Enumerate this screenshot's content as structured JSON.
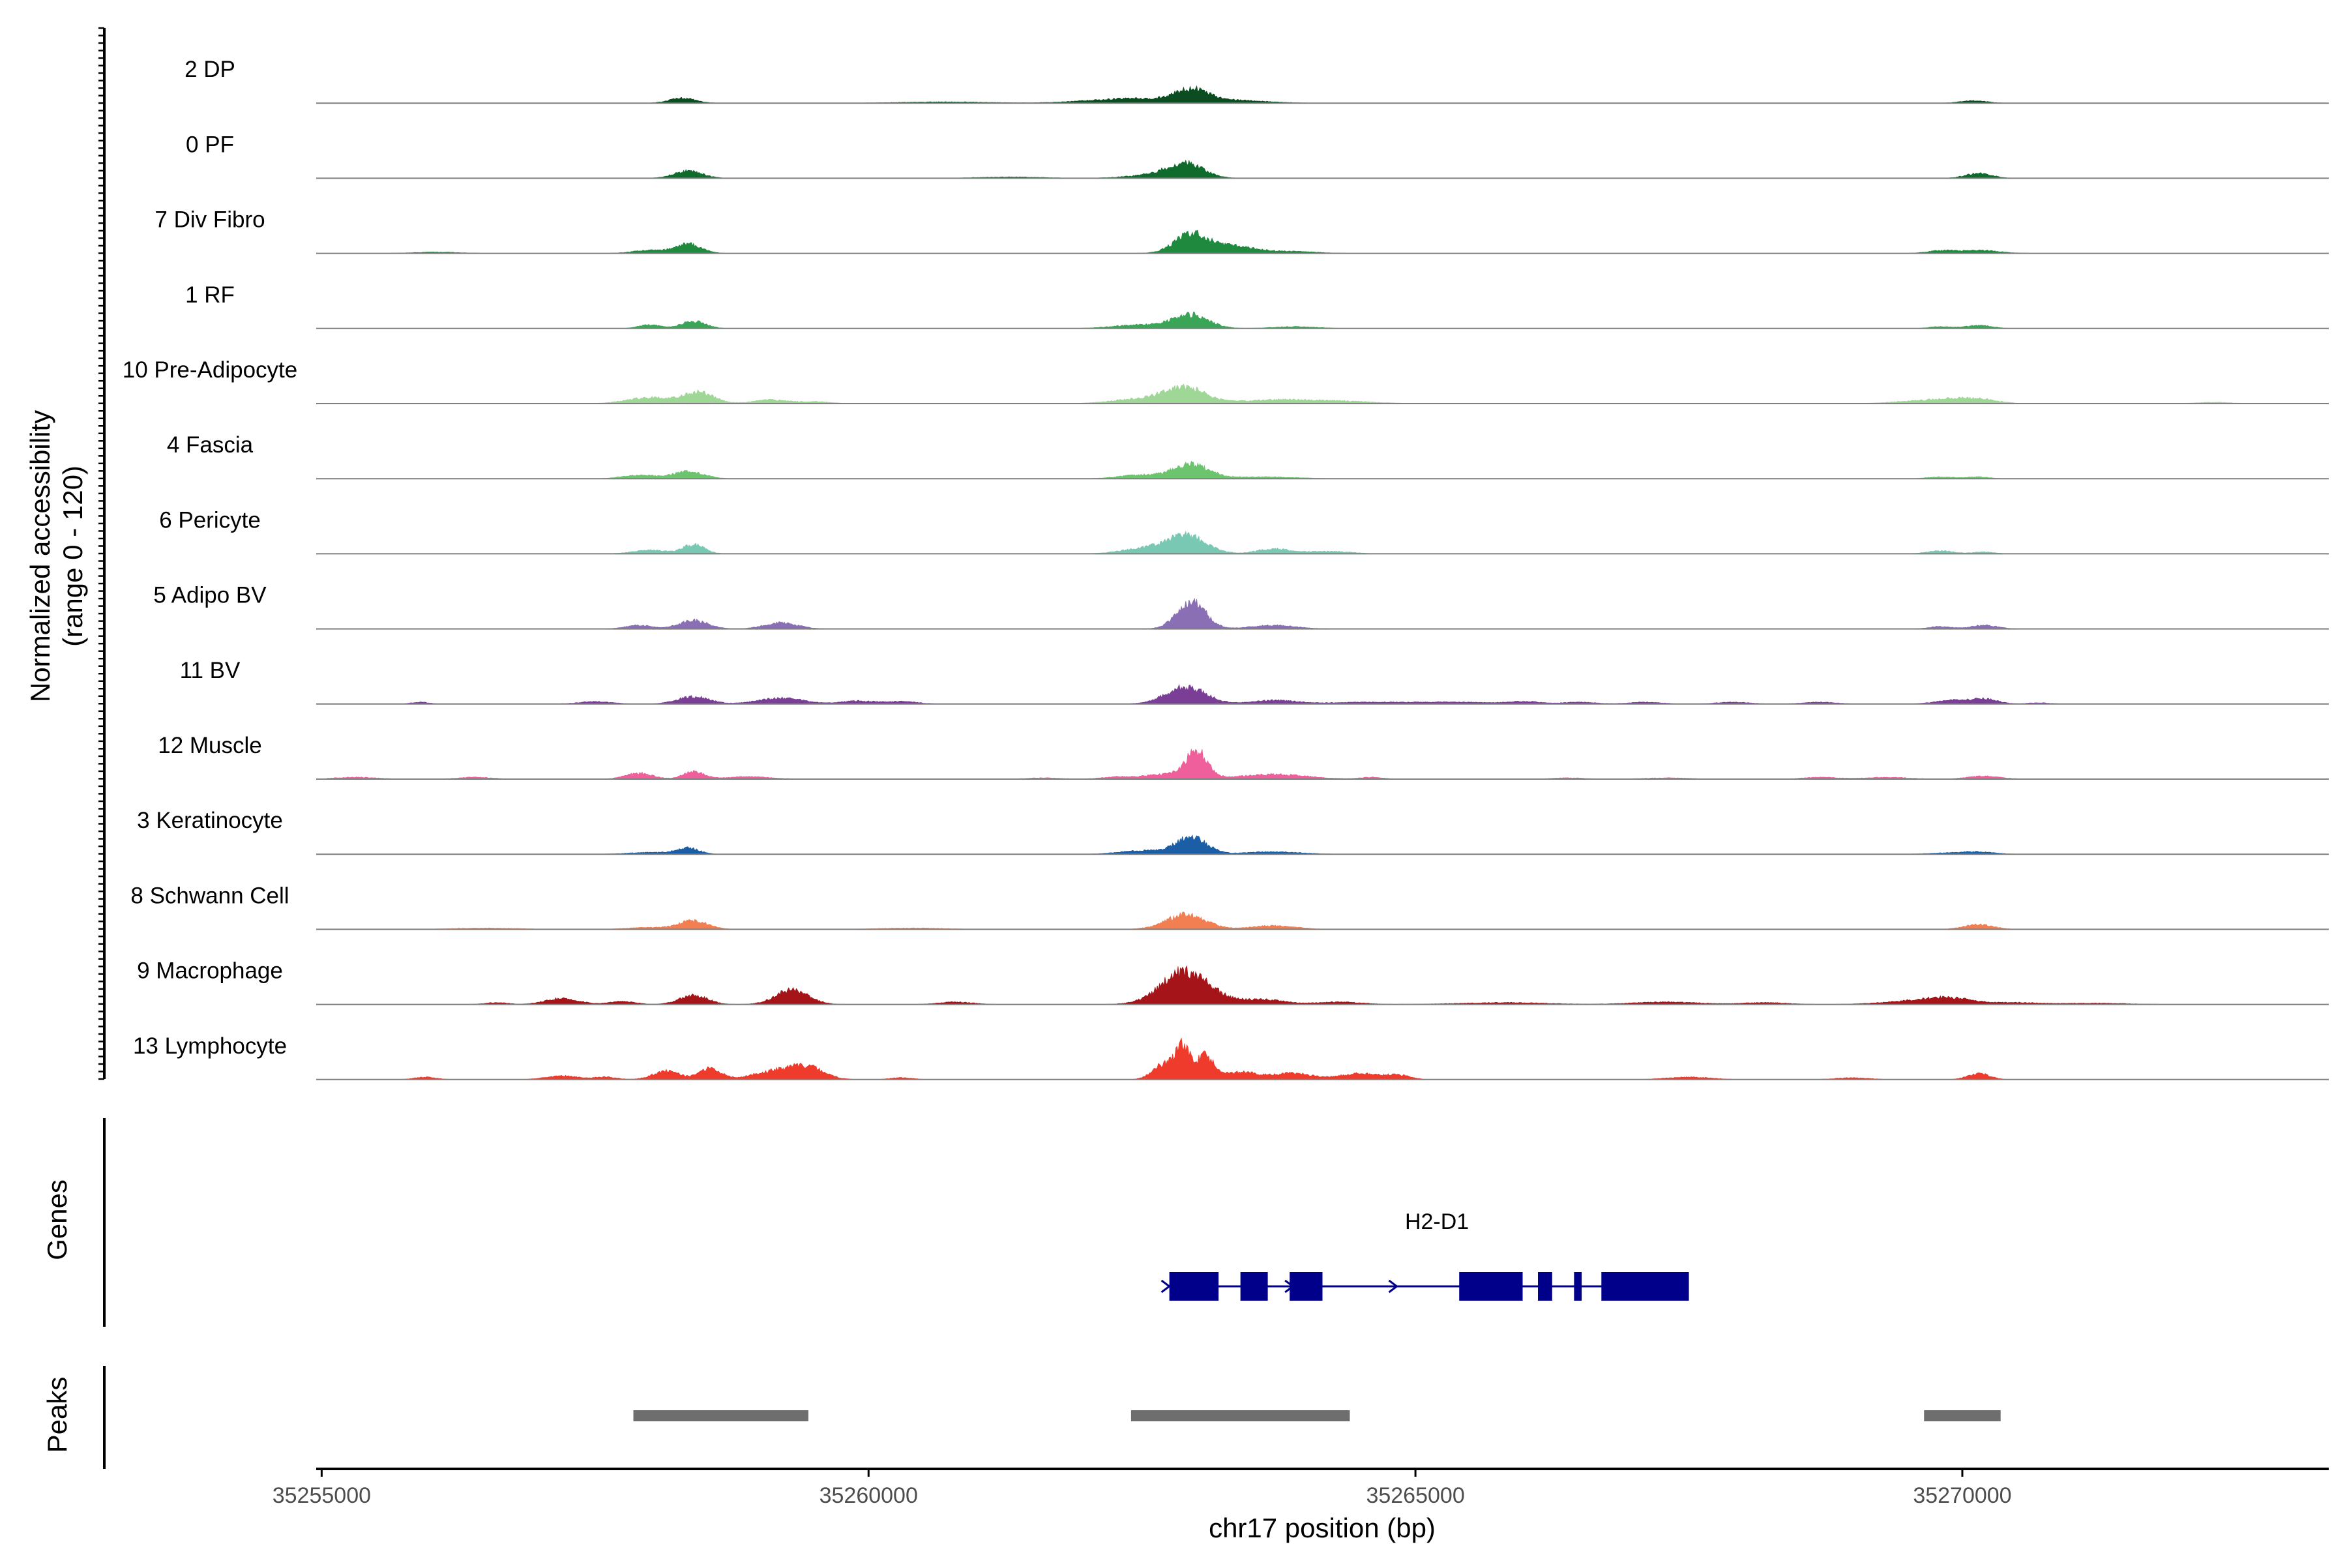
{
  "chart_data": {
    "type": "area",
    "description_axis": {
      "ylabel_line1": "Normalized accessibility",
      "ylabel_line2": "(range 0 - 120)",
      "ylim": [
        0,
        120
      ]
    },
    "xlabel": "chr17 position (bp)",
    "xlim": [
      35254950,
      35273350
    ],
    "x_ticks": [
      35255000,
      35260000,
      35265000,
      35270000
    ],
    "x_tick_labels": [
      "35255000",
      "35260000",
      "35265000",
      "35270000"
    ],
    "tracks": [
      {
        "name": "2 DP",
        "color": "#0b4d21",
        "peaks": [
          [
            35258300,
            8,
            120
          ],
          [
            35260700,
            2,
            400
          ],
          [
            35262100,
            3,
            300
          ],
          [
            35262500,
            6,
            300
          ],
          [
            35262950,
            20,
            150
          ],
          [
            35263300,
            5,
            300
          ],
          [
            35270100,
            4,
            120
          ]
        ]
      },
      {
        "name": "0 PF",
        "color": "#0e6b2c",
        "peaks": [
          [
            35258350,
            12,
            130
          ],
          [
            35262900,
            22,
            160
          ],
          [
            35262650,
            6,
            250
          ],
          [
            35270150,
            8,
            120
          ],
          [
            35261300,
            2,
            300
          ]
        ]
      },
      {
        "name": "7 Div Fibro",
        "color": "#1f8a3e",
        "peaks": [
          [
            35258350,
            15,
            120
          ],
          [
            35258000,
            5,
            150
          ],
          [
            35262950,
            32,
            150
          ],
          [
            35263350,
            12,
            200
          ],
          [
            35263900,
            3,
            200
          ],
          [
            35269800,
            4,
            120
          ],
          [
            35270150,
            5,
            180
          ],
          [
            35256050,
            2,
            200
          ]
        ]
      },
      {
        "name": "1 RF",
        "color": "#3ba557",
        "peaks": [
          [
            35258000,
            6,
            100
          ],
          [
            35258400,
            12,
            110
          ],
          [
            35262950,
            22,
            160
          ],
          [
            35262500,
            6,
            250
          ],
          [
            35263900,
            3,
            200
          ],
          [
            35269800,
            3,
            100
          ],
          [
            35270150,
            5,
            120
          ]
        ]
      },
      {
        "name": "10 Pre-Adipocyte",
        "color": "#9fd796",
        "peaks": [
          [
            35258000,
            10,
            200
          ],
          [
            35258450,
            18,
            140
          ],
          [
            35259100,
            6,
            150
          ],
          [
            35259500,
            3,
            150
          ],
          [
            35262900,
            26,
            180
          ],
          [
            35262500,
            8,
            250
          ],
          [
            35263700,
            6,
            300
          ],
          [
            35264300,
            4,
            300
          ],
          [
            35269900,
            8,
            200
          ],
          [
            35270200,
            5,
            150
          ],
          [
            35269500,
            3,
            200
          ],
          [
            35272300,
            2,
            150
          ]
        ]
      },
      {
        "name": "4 Fascia",
        "color": "#6cc46f",
        "peaks": [
          [
            35257900,
            6,
            150
          ],
          [
            35258350,
            12,
            140
          ],
          [
            35262950,
            24,
            160
          ],
          [
            35262500,
            6,
            200
          ],
          [
            35263600,
            3,
            300
          ],
          [
            35269800,
            3,
            120
          ],
          [
            35270150,
            3,
            100
          ]
        ]
      },
      {
        "name": "6 Pericyte",
        "color": "#78c8b4",
        "peaks": [
          [
            35258000,
            6,
            150
          ],
          [
            35258400,
            15,
            100
          ],
          [
            35262900,
            30,
            180
          ],
          [
            35262500,
            8,
            200
          ],
          [
            35263700,
            8,
            150
          ],
          [
            35264200,
            4,
            200
          ],
          [
            35269800,
            5,
            120
          ],
          [
            35270200,
            3,
            100
          ]
        ]
      },
      {
        "name": "5 Adipo BV",
        "color": "#8a6fb5",
        "peaks": [
          [
            35257900,
            6,
            120
          ],
          [
            35258400,
            14,
            130
          ],
          [
            35259200,
            10,
            150
          ],
          [
            35262950,
            45,
            130
          ],
          [
            35263700,
            6,
            200
          ],
          [
            35269800,
            4,
            100
          ],
          [
            35270200,
            6,
            120
          ]
        ]
      },
      {
        "name": "11 BV",
        "color": "#7a3e97",
        "peaks": [
          [
            35255900,
            3,
            80
          ],
          [
            35257500,
            4,
            150
          ],
          [
            35258400,
            12,
            150
          ],
          [
            35259200,
            10,
            200
          ],
          [
            35259900,
            5,
            150
          ],
          [
            35260300,
            4,
            150
          ],
          [
            35262900,
            28,
            180
          ],
          [
            35263700,
            6,
            200
          ],
          [
            35264600,
            3,
            400
          ],
          [
            35265400,
            3,
            300
          ],
          [
            35266000,
            4,
            150
          ],
          [
            35266500,
            3,
            150
          ],
          [
            35267100,
            3,
            150
          ],
          [
            35267900,
            3,
            150
          ],
          [
            35268700,
            3,
            150
          ],
          [
            35269900,
            6,
            150
          ],
          [
            35270200,
            8,
            120
          ],
          [
            35270700,
            2,
            100
          ]
        ]
      },
      {
        "name": "12 Muscle",
        "color": "#ee5f9b",
        "peaks": [
          [
            35255300,
            3,
            200
          ],
          [
            35256400,
            3,
            150
          ],
          [
            35257900,
            10,
            120
          ],
          [
            35258400,
            12,
            100
          ],
          [
            35258900,
            4,
            200
          ],
          [
            35261600,
            2,
            150
          ],
          [
            35262300,
            4,
            150
          ],
          [
            35262700,
            8,
            150
          ],
          [
            35263000,
            45,
            100
          ],
          [
            35263700,
            8,
            300
          ],
          [
            35264600,
            3,
            100
          ],
          [
            35266400,
            2,
            150
          ],
          [
            35267300,
            2,
            200
          ],
          [
            35268700,
            3,
            150
          ],
          [
            35269300,
            3,
            200
          ],
          [
            35270200,
            5,
            150
          ]
        ]
      },
      {
        "name": "3 Keratinocyte",
        "color": "#1b5ea6",
        "peaks": [
          [
            35258000,
            3,
            200
          ],
          [
            35258350,
            10,
            100
          ],
          [
            35262950,
            28,
            140
          ],
          [
            35262500,
            6,
            200
          ],
          [
            35263700,
            4,
            250
          ],
          [
            35269900,
            2,
            200
          ],
          [
            35270150,
            3,
            150
          ]
        ]
      },
      {
        "name": "8 Schwann Cell",
        "color": "#f27f52",
        "peaks": [
          [
            35258000,
            3,
            200
          ],
          [
            35258400,
            14,
            130
          ],
          [
            35262900,
            24,
            180
          ],
          [
            35263700,
            6,
            200
          ],
          [
            35260400,
            2,
            300
          ],
          [
            35270150,
            8,
            130
          ],
          [
            35256500,
            2,
            300
          ]
        ]
      },
      {
        "name": "9 Macrophage",
        "color": "#a51419",
        "peaks": [
          [
            35256600,
            3,
            100
          ],
          [
            35257200,
            10,
            150
          ],
          [
            35257750,
            5,
            120
          ],
          [
            35258400,
            15,
            130
          ],
          [
            35259300,
            24,
            150
          ],
          [
            35260800,
            4,
            150
          ],
          [
            35262900,
            55,
            220
          ],
          [
            35263600,
            8,
            200
          ],
          [
            35264300,
            4,
            200
          ],
          [
            35265800,
            3,
            400
          ],
          [
            35267300,
            4,
            300
          ],
          [
            35268200,
            3,
            200
          ],
          [
            35269600,
            6,
            300
          ],
          [
            35269900,
            8,
            200
          ],
          [
            35270500,
            3,
            200
          ],
          [
            35271200,
            2,
            300
          ]
        ]
      },
      {
        "name": "13 Lymphocyte",
        "color": "#ef3b2c",
        "peaks": [
          [
            35255950,
            4,
            100
          ],
          [
            35257200,
            6,
            150
          ],
          [
            35257600,
            4,
            100
          ],
          [
            35258150,
            14,
            120
          ],
          [
            35258550,
            18,
            100
          ],
          [
            35259150,
            14,
            200
          ],
          [
            35259450,
            18,
            150
          ],
          [
            35260300,
            3,
            100
          ],
          [
            35262700,
            25,
            100
          ],
          [
            35262880,
            52,
            70
          ],
          [
            35263080,
            36,
            70
          ],
          [
            35263400,
            12,
            200
          ],
          [
            35263900,
            10,
            150
          ],
          [
            35264500,
            10,
            200
          ],
          [
            35264850,
            6,
            100
          ],
          [
            35267500,
            4,
            200
          ],
          [
            35269000,
            3,
            150
          ],
          [
            35270150,
            10,
            100
          ]
        ]
      }
    ],
    "gene": {
      "name": "H2-D1",
      "start": 35262750,
      "end": 35267500,
      "exons": [
        [
          35262750,
          35263200
        ],
        [
          35263400,
          35263650
        ],
        [
          35263850,
          35264150
        ],
        [
          35265400,
          35265980
        ],
        [
          35266120,
          35266250
        ],
        [
          35266450,
          35266520
        ],
        [
          35266700,
          35267500
        ]
      ],
      "arrows": [
        35262720,
        35263850,
        35264800,
        35266750
      ],
      "color": "#00008b"
    },
    "peaks_track": {
      "regions": [
        [
          35257850,
          35259450
        ],
        [
          35262400,
          35264400
        ],
        [
          35269650,
          35270350
        ]
      ],
      "color": "#6e6e6e"
    },
    "panel_labels": {
      "genes": "Genes",
      "peaks": "Peaks"
    },
    "grid": false
  }
}
